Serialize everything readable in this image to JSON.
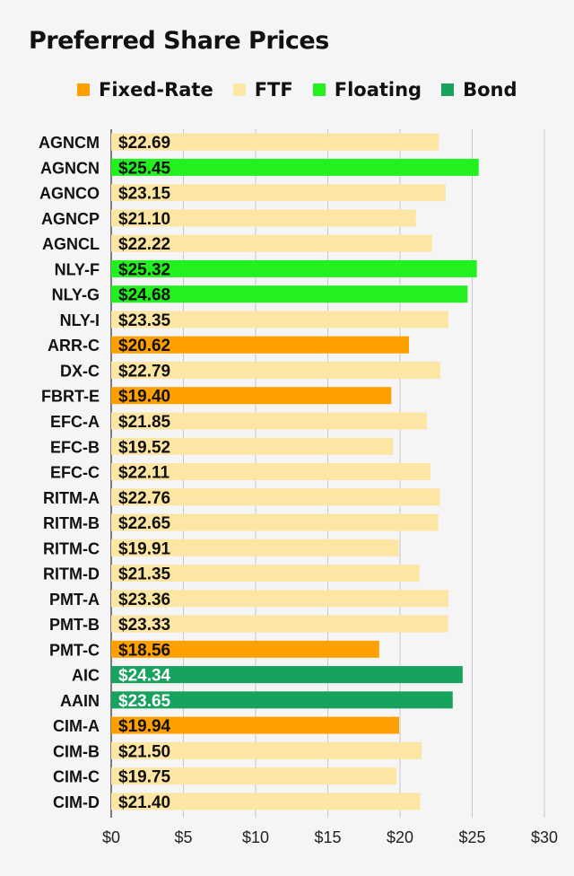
{
  "chart_data": {
    "type": "bar",
    "orientation": "horizontal",
    "title": "Preferred Share Prices",
    "xlim": [
      0,
      30
    ],
    "xticks": [
      0,
      5,
      10,
      15,
      20,
      25,
      30
    ],
    "xtick_labels": [
      "$0",
      "$5",
      "$10",
      "$15",
      "$20",
      "$25",
      "$30"
    ],
    "grid": "vertical",
    "legend_placement": "top",
    "legend": [
      {
        "name": "Fixed-Rate",
        "color": "#ff9f00"
      },
      {
        "name": "FTF",
        "color": "#fde5a3"
      },
      {
        "name": "Floating",
        "color": "#22f01f"
      },
      {
        "name": "Bond",
        "color": "#17a25e"
      }
    ],
    "bars": [
      {
        "label": "AGNCM",
        "value": 22.69,
        "value_label": "$22.69",
        "type": "FTF"
      },
      {
        "label": "AGNCN",
        "value": 25.45,
        "value_label": "$25.45",
        "type": "Floating"
      },
      {
        "label": "AGNCO",
        "value": 23.15,
        "value_label": "$23.15",
        "type": "FTF"
      },
      {
        "label": "AGNCP",
        "value": 21.1,
        "value_label": "$21.10",
        "type": "FTF"
      },
      {
        "label": "AGNCL",
        "value": 22.22,
        "value_label": "$22.22",
        "type": "FTF"
      },
      {
        "label": "NLY-F",
        "value": 25.32,
        "value_label": "$25.32",
        "type": "Floating"
      },
      {
        "label": "NLY-G",
        "value": 24.68,
        "value_label": "$24.68",
        "type": "Floating"
      },
      {
        "label": "NLY-I",
        "value": 23.35,
        "value_label": "$23.35",
        "type": "FTF"
      },
      {
        "label": "ARR-C",
        "value": 20.62,
        "value_label": "$20.62",
        "type": "Fixed-Rate"
      },
      {
        "label": "DX-C",
        "value": 22.79,
        "value_label": "$22.79",
        "type": "FTF"
      },
      {
        "label": "FBRT-E",
        "value": 19.4,
        "value_label": "$19.40",
        "type": "Fixed-Rate"
      },
      {
        "label": "EFC-A",
        "value": 21.85,
        "value_label": "$21.85",
        "type": "FTF"
      },
      {
        "label": "EFC-B",
        "value": 19.52,
        "value_label": "$19.52",
        "type": "FTF"
      },
      {
        "label": "EFC-C",
        "value": 22.11,
        "value_label": "$22.11",
        "type": "FTF"
      },
      {
        "label": "RITM-A",
        "value": 22.76,
        "value_label": "$22.76",
        "type": "FTF"
      },
      {
        "label": "RITM-B",
        "value": 22.65,
        "value_label": "$22.65",
        "type": "FTF"
      },
      {
        "label": "RITM-C",
        "value": 19.91,
        "value_label": "$19.91",
        "type": "FTF"
      },
      {
        "label": "RITM-D",
        "value": 21.35,
        "value_label": "$21.35",
        "type": "FTF"
      },
      {
        "label": "PMT-A",
        "value": 23.36,
        "value_label": "$23.36",
        "type": "FTF"
      },
      {
        "label": "PMT-B",
        "value": 23.33,
        "value_label": "$23.33",
        "type": "FTF"
      },
      {
        "label": "PMT-C",
        "value": 18.56,
        "value_label": "$18.56",
        "type": "Fixed-Rate"
      },
      {
        "label": "AIC",
        "value": 24.34,
        "value_label": "$24.34",
        "type": "Bond"
      },
      {
        "label": "AAIN",
        "value": 23.65,
        "value_label": "$23.65",
        "type": "Bond"
      },
      {
        "label": "CIM-A",
        "value": 19.94,
        "value_label": "$19.94",
        "type": "Fixed-Rate"
      },
      {
        "label": "CIM-B",
        "value": 21.5,
        "value_label": "$21.50",
        "type": "FTF"
      },
      {
        "label": "CIM-C",
        "value": 19.75,
        "value_label": "$19.75",
        "type": "FTF"
      },
      {
        "label": "CIM-D",
        "value": 21.4,
        "value_label": "$21.40",
        "type": "FTF"
      }
    ]
  }
}
